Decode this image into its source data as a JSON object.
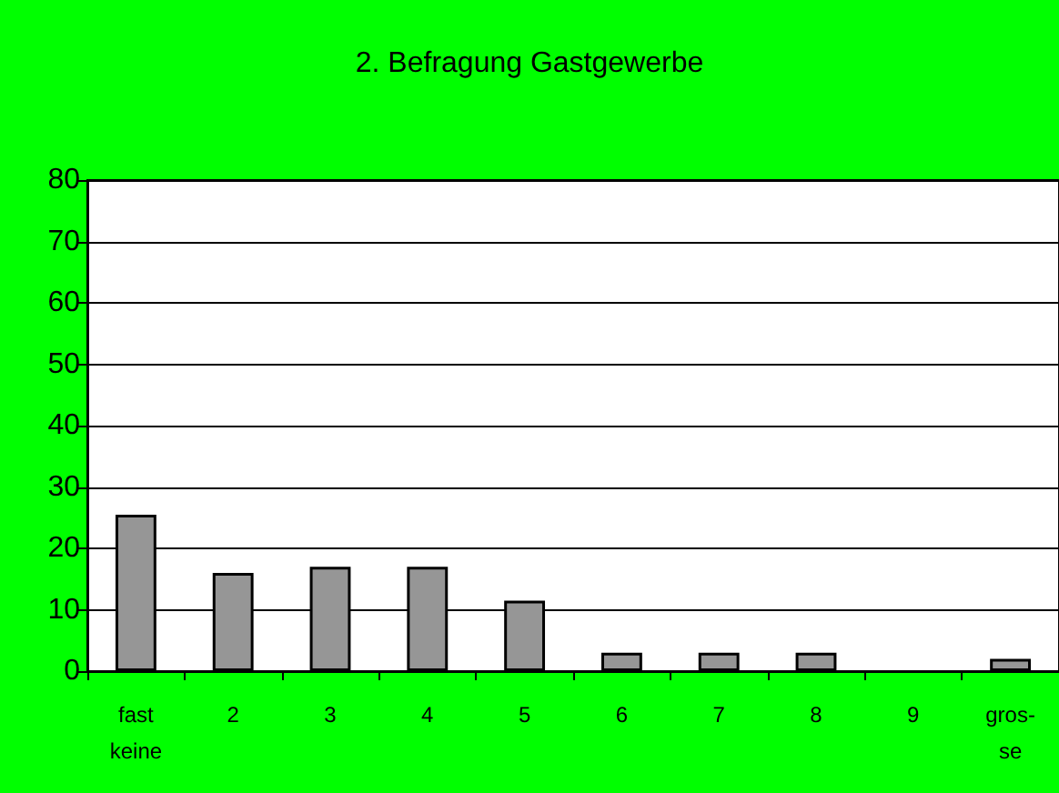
{
  "chart_data": {
    "type": "bar",
    "title": "2. Befragung Gastgewerbe",
    "categories": [
      "fast\nkeine",
      "2",
      "3",
      "4",
      "5",
      "6",
      "7",
      "8",
      "9",
      "gros-\nse"
    ],
    "values": [
      25.5,
      16,
      17,
      17,
      11.5,
      3,
      3,
      3,
      0,
      2
    ],
    "color": "#969696",
    "ylim": [
      0,
      80
    ],
    "yticks": [
      0,
      10,
      20,
      30,
      40,
      50,
      60,
      70,
      80
    ],
    "grid": "y"
  }
}
